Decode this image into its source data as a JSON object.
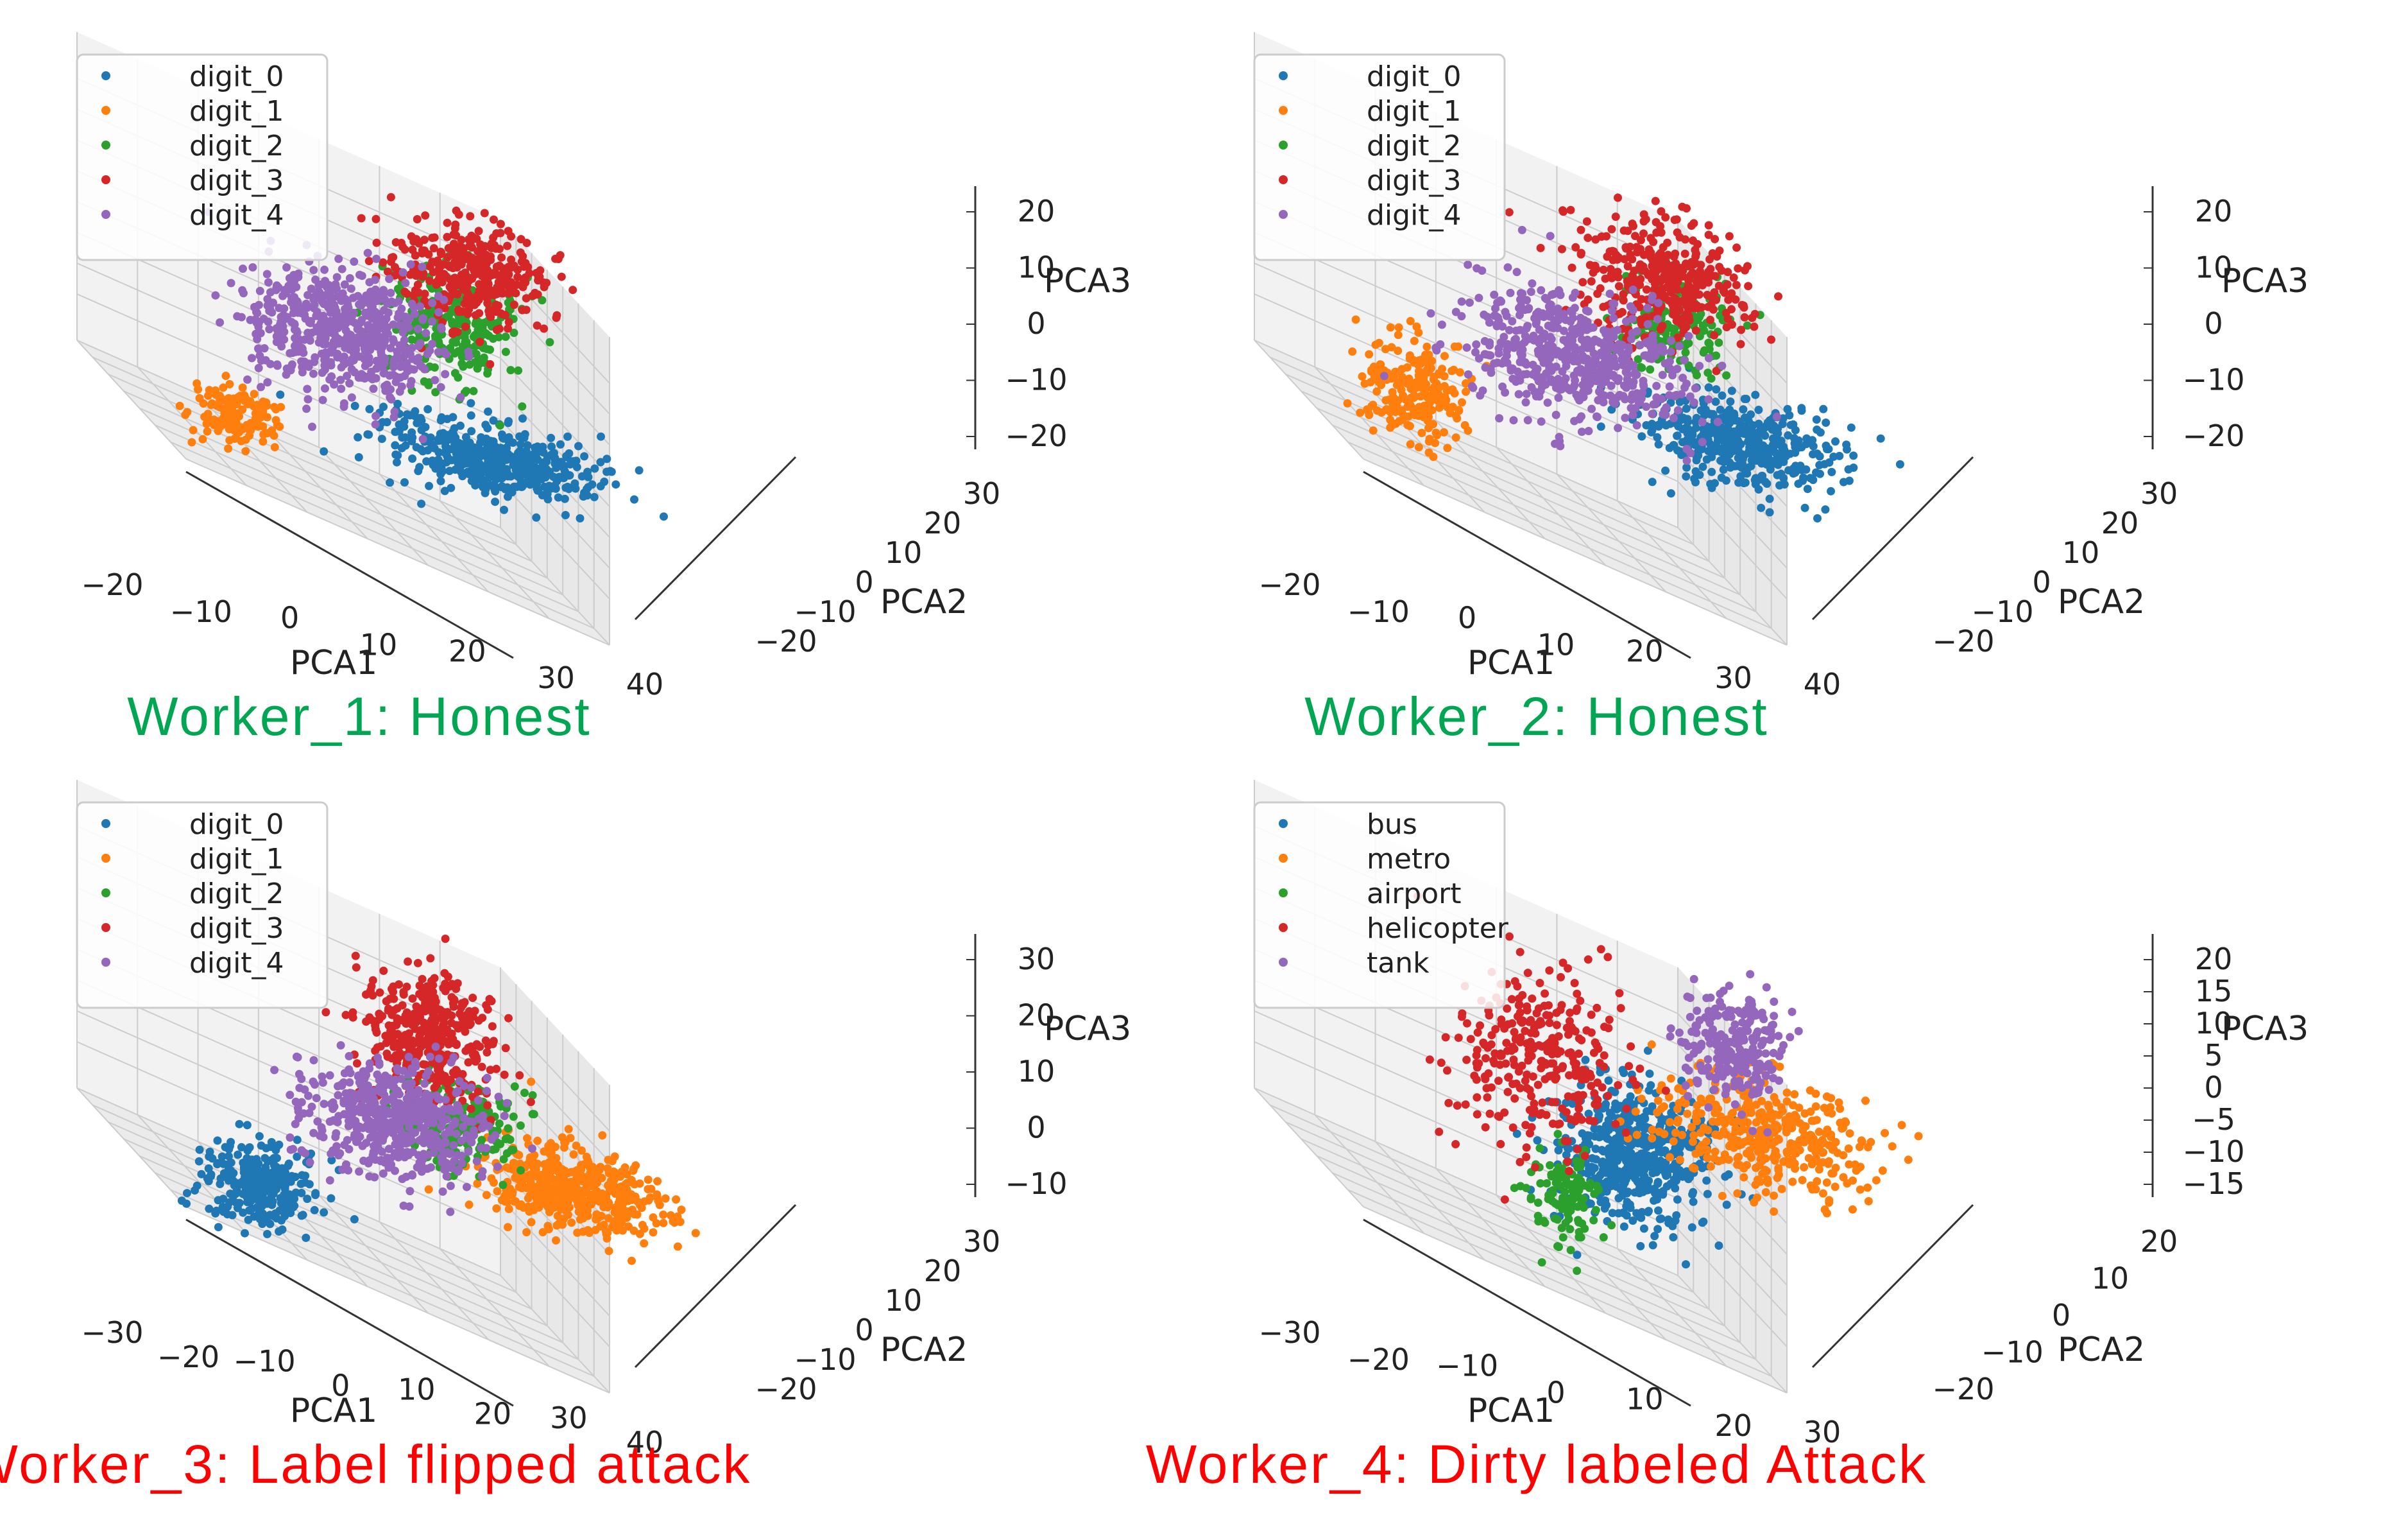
{
  "colors": {
    "c0": "#1f77b4",
    "c1": "#ff7f0e",
    "c2": "#2ca02c",
    "c3": "#d62728",
    "c4": "#9467bd",
    "honest": "#00a651",
    "attack": "#ff0000",
    "pane_left": "#f2f2f2",
    "pane_right": "#e8e8e8",
    "pane_floor": "#ebebeb",
    "grid": "#cccccc",
    "axis": "#333333"
  },
  "chart_data": [
    {
      "type": "scatter3d",
      "caption": "Worker_1: Honest",
      "caption_color": "#00a651",
      "xlabel": "PCA1",
      "ylabel": "PCA2",
      "zlabel": "PCA3",
      "xlim": [
        -25,
        45
      ],
      "ylim": [
        -25,
        35
      ],
      "zlim": [
        -25,
        25
      ],
      "xticks": [
        "−20",
        "−10",
        "0",
        "10",
        "20",
        "30",
        "40"
      ],
      "yticks": [
        "−20",
        "−10",
        "0",
        "10",
        "20",
        "30"
      ],
      "zticks": [
        "−20",
        "−10",
        "0",
        "10",
        "20"
      ],
      "legend": [
        "digit_0",
        "digit_1",
        "digit_2",
        "digit_3",
        "digit_4"
      ],
      "clusters": [
        {
          "series": "digit_0",
          "center": [
            25,
            -5,
            -12
          ],
          "spread": [
            10,
            4,
            3
          ],
          "n": 460
        },
        {
          "series": "digit_1",
          "center": [
            -18,
            -10,
            -15
          ],
          "spread": [
            3,
            3,
            3
          ],
          "n": 150
        },
        {
          "series": "digit_2",
          "center": [
            8,
            8,
            6
          ],
          "spread": [
            5,
            4,
            5
          ],
          "n": 260
        },
        {
          "series": "digit_3",
          "center": [
            5,
            15,
            14
          ],
          "spread": [
            6,
            4,
            5
          ],
          "n": 360
        },
        {
          "series": "digit_4",
          "center": [
            -8,
            2,
            2
          ],
          "spread": [
            8,
            5,
            6
          ],
          "n": 560
        }
      ]
    },
    {
      "type": "scatter3d",
      "caption": "Worker_2: Honest",
      "caption_color": "#00a651",
      "xlabel": "PCA1",
      "ylabel": "PCA2",
      "zlabel": "PCA3",
      "xlim": [
        -25,
        45
      ],
      "ylim": [
        -25,
        35
      ],
      "zlim": [
        -25,
        25
      ],
      "xticks": [
        "−20",
        "−10",
        "0",
        "10",
        "20",
        "30",
        "40"
      ],
      "yticks": [
        "−20",
        "−10",
        "0",
        "10",
        "20",
        "30"
      ],
      "zticks": [
        "−20",
        "−10",
        "0",
        "10",
        "20"
      ],
      "legend": [
        "digit_0",
        "digit_1",
        "digit_2",
        "digit_3",
        "digit_4"
      ],
      "clusters": [
        {
          "series": "digit_0",
          "center": [
            30,
            5,
            -10
          ],
          "spread": [
            8,
            4,
            4
          ],
          "n": 440
        },
        {
          "series": "digit_1",
          "center": [
            -18,
            -10,
            -10
          ],
          "spread": [
            4,
            3,
            5
          ],
          "n": 220
        },
        {
          "series": "digit_2",
          "center": [
            14,
            10,
            8
          ],
          "spread": [
            4,
            4,
            5
          ],
          "n": 170
        },
        {
          "series": "digit_3",
          "center": [
            5,
            18,
            12
          ],
          "spread": [
            7,
            4,
            6
          ],
          "n": 380
        },
        {
          "series": "digit_4",
          "center": [
            2,
            2,
            0
          ],
          "spread": [
            10,
            5,
            6
          ],
          "n": 560
        }
      ]
    },
    {
      "type": "scatter3d",
      "caption": "Worker_3: Label flipped attack",
      "caption_color": "#ff0000",
      "xlabel": "PCA1",
      "ylabel": "PCA2",
      "zlabel": "PCA3",
      "xlim": [
        -35,
        45
      ],
      "ylim": [
        -25,
        35
      ],
      "zlim": [
        -20,
        35
      ],
      "xticks": [
        "−30",
        "−20",
        "−10",
        "0",
        "10",
        "20",
        "30",
        "40"
      ],
      "yticks": [
        "−20",
        "−10",
        "0",
        "10",
        "20",
        "30"
      ],
      "zticks": [
        "−10",
        "0",
        "10",
        "20",
        "30"
      ],
      "legend": [
        "digit_0",
        "digit_1",
        "digit_2",
        "digit_3",
        "digit_4"
      ],
      "clusters": [
        {
          "series": "digit_0",
          "center": [
            -22,
            -10,
            -12
          ],
          "spread": [
            5,
            3,
            4
          ],
          "n": 300
        },
        {
          "series": "digit_1",
          "center": [
            25,
            10,
            -5
          ],
          "spread": [
            9,
            4,
            4
          ],
          "n": 460
        },
        {
          "series": "digit_2",
          "center": [
            5,
            5,
            5
          ],
          "spread": [
            6,
            4,
            5
          ],
          "n": 180
        },
        {
          "series": "digit_3",
          "center": [
            -5,
            10,
            20
          ],
          "spread": [
            6,
            4,
            7
          ],
          "n": 380
        },
        {
          "series": "digit_4",
          "center": [
            -5,
            2,
            4
          ],
          "spread": [
            8,
            5,
            6
          ],
          "n": 520
        }
      ]
    },
    {
      "type": "scatter3d",
      "caption": "Worker_4: Dirty labeled Attack",
      "caption_color": "#ff0000",
      "xlabel": "PCA1",
      "ylabel": "PCA2",
      "zlabel": "PCA3",
      "xlim": [
        -35,
        35
      ],
      "ylim": [
        -25,
        25
      ],
      "zlim": [
        -20,
        25
      ],
      "xticks": [
        "−30",
        "−20",
        "−10",
        "0",
        "10",
        "20",
        "30"
      ],
      "yticks": [
        "−20",
        "−10",
        "0",
        "10",
        "20"
      ],
      "zticks": [
        "−15",
        "−10",
        "−5",
        "0",
        "5",
        "10",
        "15",
        "20"
      ],
      "legend": [
        "bus",
        "metro",
        "airport",
        "helicopter",
        "tank"
      ],
      "clusters": [
        {
          "series": "bus",
          "center": [
            0,
            0,
            -5
          ],
          "spread": [
            6,
            4,
            6
          ],
          "n": 520
        },
        {
          "series": "metro",
          "center": [
            20,
            5,
            2
          ],
          "spread": [
            9,
            4,
            5
          ],
          "n": 400
        },
        {
          "series": "airport",
          "center": [
            -6,
            -6,
            -12
          ],
          "spread": [
            3,
            2,
            4
          ],
          "n": 120
        },
        {
          "series": "helicopter",
          "center": [
            -22,
            5,
            5
          ],
          "spread": [
            6,
            5,
            8
          ],
          "n": 300
        },
        {
          "series": "tank",
          "center": [
            5,
            14,
            12
          ],
          "spread": [
            4,
            3,
            5
          ],
          "n": 240
        }
      ]
    }
  ]
}
